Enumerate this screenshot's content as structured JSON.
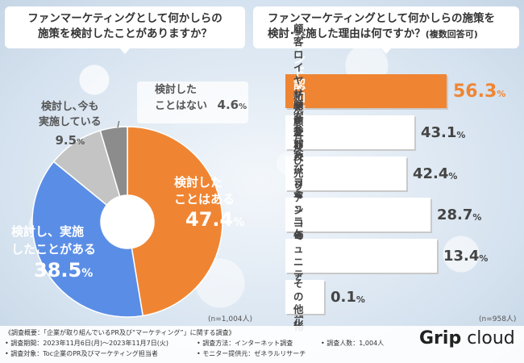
{
  "left": {
    "title_line1": "ファンマーケティングとして何かしらの",
    "title_line2": "施策を検討したことがありますか？",
    "n_note": "(n=1,004人)"
  },
  "right": {
    "title_line1": "ファンマーケティングとして何かしらの施策を",
    "title_line2": "検討･実施した理由は何ですか？",
    "title_suffix": "(複数回答可)",
    "n_note": "(n=958人)"
  },
  "chart_data": [
    {
      "type": "pie",
      "title": "ファンマーケティングとして何かしらの施策を検討したことがありますか？",
      "slices": [
        {
          "label_line1": "検討した",
          "label_line2": "ことはある",
          "value": 47.4,
          "num": "47.4",
          "unit": "%",
          "color": "#ef8533"
        },
        {
          "label_line1": "検討し、実施",
          "label_line2": "したことがある",
          "value": 38.5,
          "num": "38.5",
          "unit": "%",
          "color": "#5a8ee6"
        },
        {
          "label_line1": "検討し､今も",
          "label_line2": "実施している",
          "value": 9.5,
          "num": "9.5",
          "unit": "%",
          "color": "#c4c4c4"
        },
        {
          "label_line1": "検討した",
          "label_line2": "ことはない",
          "value": 4.6,
          "num": "4.6",
          "unit": "%",
          "color": "#8c8c8c"
        }
      ]
    },
    {
      "type": "bar",
      "title": "ファンマーケティングとして何かしらの施策を検討･実施した理由は何ですか？(複数回答可)",
      "categories": [
        [
          "ブランド認知度の向上"
        ],
        [
          "顧客ロイヤリティ及び",
          "再購入率の改善"
        ],
        [
          "新規顧客及び",
          "売り上げの増加"
        ],
        [
          "顧客参加及び",
          "コミュニケーションの強化"
        ],
        [
          "ファンコミュニティの強化"
        ],
        [
          "その他"
        ]
      ],
      "values": [
        56.3,
        43.1,
        42.4,
        28.7,
        13.4,
        0.1
      ],
      "value_labels": [
        "56.3",
        "43.1",
        "42.4",
        "28.7",
        "13.4",
        "0.1"
      ],
      "unit": "%",
      "highlight_color": "#ef8533",
      "xlim": [
        0,
        60
      ]
    }
  ],
  "footer": {
    "survey_title": "《調査概要：「企業が取り組んでいるPR及び“マーケティング”」に関する調査》",
    "period": "• 調査期間：2023年11月6日(月)～2023年11月7日(火)",
    "method": "• 調査方法：インターネット調査",
    "count": "• 調査人数：1,004人",
    "target": "• 調査対象：Toc企業のPR及びマーケティング担当者",
    "monitor": "• モニター提供元：ゼネラルリサーチ"
  },
  "logo": {
    "bold": "Grip",
    "rest": " cloud"
  }
}
